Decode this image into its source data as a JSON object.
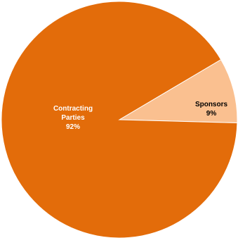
{
  "chart_data": {
    "type": "pie",
    "slices": [
      {
        "label_lines": [
          "Contracting",
          "Parties"
        ],
        "value_label": "92%",
        "value": 92,
        "color": "#E36C0A",
        "label_color": "#ffffff"
      },
      {
        "label_lines": [
          "Sponsors"
        ],
        "value_label": "9%",
        "value": 9,
        "color": "#FAC090",
        "label_color": "#000000"
      }
    ],
    "title": "",
    "legend": "none"
  }
}
